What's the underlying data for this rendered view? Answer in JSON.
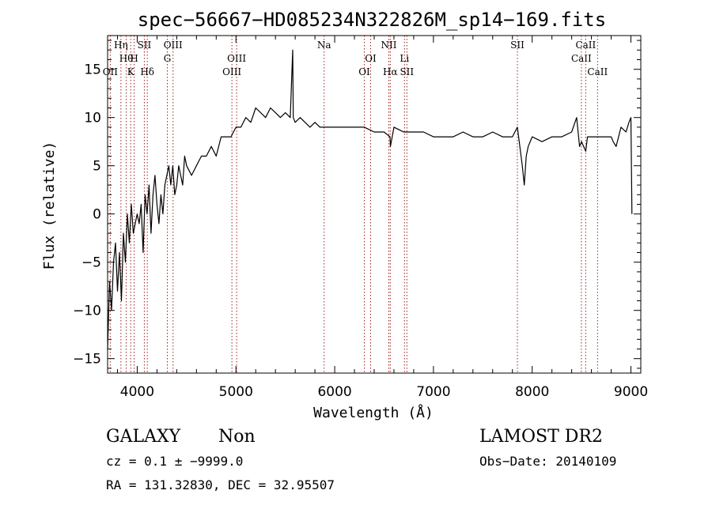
{
  "chart_data": {
    "type": "line",
    "title": "spec−56667−HD085234N322826M_sp14−169.fits",
    "xlabel": "Wavelength (Å)",
    "ylabel": "Flux (relative)",
    "xlim": [
      3700,
      9100
    ],
    "ylim": [
      -16.5,
      18.5
    ],
    "x_ticks": [
      4000,
      5000,
      6000,
      7000,
      8000,
      9000
    ],
    "y_ticks": [
      -15,
      -10,
      -5,
      0,
      5,
      10,
      15
    ],
    "grid": false,
    "series": [
      {
        "x": [
          3700,
          3720,
          3740,
          3760,
          3780,
          3800,
          3820,
          3840,
          3860,
          3880,
          3900,
          3920,
          3940,
          3960,
          3980,
          4000,
          4020,
          4040,
          4060,
          4080,
          4100,
          4120,
          4140,
          4160,
          4180,
          4200,
          4220,
          4240,
          4260,
          4280,
          4300,
          4320,
          4340,
          4360,
          4380,
          4400,
          4420,
          4440,
          4460,
          4480,
          4500,
          4550,
          4600,
          4650,
          4700,
          4750,
          4800,
          4850,
          4900,
          4950,
          5000,
          5050,
          5100,
          5150,
          5200,
          5250,
          5300,
          5350,
          5400,
          5450,
          5500,
          5550,
          5575,
          5580,
          5600,
          5650,
          5700,
          5750,
          5800,
          5850,
          5900,
          5950,
          6000,
          6100,
          6200,
          6300,
          6400,
          6500,
          6560,
          6564,
          6600,
          6700,
          6800,
          6900,
          7000,
          7100,
          7200,
          7300,
          7400,
          7500,
          7600,
          7700,
          7800,
          7850,
          7900,
          7920,
          7940,
          7960,
          8000,
          8100,
          8200,
          8300,
          8400,
          8450,
          8480,
          8500,
          8542,
          8560,
          8600,
          8662,
          8700,
          8800,
          8820,
          8850,
          8900,
          8950,
          8980,
          9000,
          9010
        ],
        "y": [
          -14,
          -7,
          -10,
          -5,
          -3,
          -8,
          -4,
          -9,
          -2,
          -5,
          0,
          -3,
          1,
          -2,
          -1,
          0,
          -1,
          1,
          -4,
          2,
          0,
          3,
          -2,
          2,
          4,
          1,
          -1,
          2,
          0,
          3,
          4,
          5,
          3,
          5,
          2,
          3,
          5,
          4,
          3,
          6,
          5,
          4,
          5,
          6,
          6,
          7,
          6,
          8,
          8,
          8,
          9,
          9,
          10,
          9.5,
          11,
          10.5,
          10,
          11,
          10.5,
          10,
          10.5,
          10,
          17,
          10,
          9.5,
          10,
          9.5,
          9,
          9.5,
          9,
          9,
          9,
          9,
          9,
          9,
          9,
          8.5,
          8.5,
          8,
          7,
          9,
          8.5,
          8.5,
          8.5,
          8,
          8,
          8,
          8.5,
          8,
          8,
          8.5,
          8,
          8,
          9,
          5,
          3,
          6,
          7,
          8,
          7.5,
          8,
          8,
          8.5,
          10,
          7,
          7.5,
          6.5,
          8,
          8,
          8,
          8,
          8,
          7.5,
          7,
          9,
          8.5,
          9.5,
          10,
          0
        ]
      }
    ],
    "line_markers": [
      {
        "w": 3727,
        "label": "OII",
        "row": 3
      },
      {
        "w": 3835,
        "label": "Hη",
        "row": 1
      },
      {
        "w": 3889,
        "label": "Hθ",
        "row": 2
      },
      {
        "w": 3934,
        "label": "K",
        "row": 3
      },
      {
        "w": 3969,
        "label": "H",
        "row": 2
      },
      {
        "w": 4072,
        "label": "SII",
        "row": 1
      },
      {
        "w": 4102,
        "label": "Hδ",
        "row": 3
      },
      {
        "w": 4305,
        "label": "G",
        "row": 2
      },
      {
        "w": 4363,
        "label": "OIII",
        "row": 1
      },
      {
        "w": 4959,
        "label": "OIII",
        "row": 3
      },
      {
        "w": 5007,
        "label": "OIII",
        "row": 2
      },
      {
        "w": 5893,
        "label": "Na",
        "row": 1
      },
      {
        "w": 6300,
        "label": "OI",
        "row": 3
      },
      {
        "w": 6364,
        "label": "OI",
        "row": 2
      },
      {
        "w": 6548,
        "label": "NII",
        "row": 1
      },
      {
        "w": 6563,
        "label": "Hα",
        "row": 3
      },
      {
        "w": 6707,
        "label": "Li",
        "row": 2
      },
      {
        "w": 6731,
        "label": "SII",
        "row": 3
      },
      {
        "w": 7850,
        "label": "SII",
        "row": 1
      },
      {
        "w": 8498,
        "label": "CaII",
        "row": 2
      },
      {
        "w": 8542,
        "label": "CaII",
        "row": 1
      },
      {
        "w": 8662,
        "label": "CaII",
        "row": 3
      }
    ]
  },
  "info": {
    "object_class": "GALAXY",
    "subclass": "Non",
    "survey": "LAMOST DR2",
    "cz": "cz = 0.1 ± −9999.0",
    "obs_date": "Obs−Date: 20140109",
    "coords": "RA = 131.32830, DEC =  32.95507"
  }
}
